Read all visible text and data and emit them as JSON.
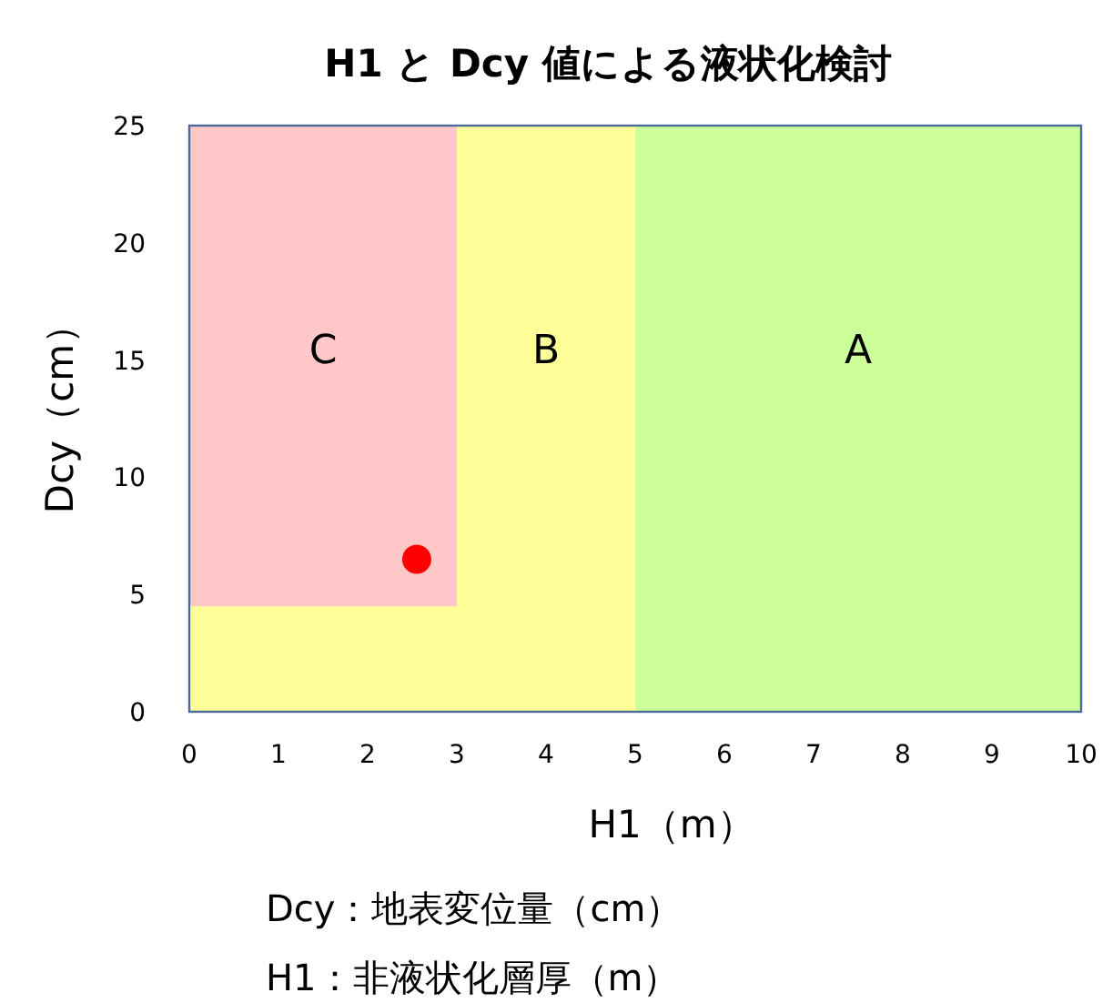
{
  "chart_data": {
    "type": "scatter",
    "title": "H1 と Dcy 値による液状化検討",
    "xlabel": "H1（m）",
    "ylabel": "Dcy（cm）",
    "xlim": [
      0,
      10
    ],
    "xticks": [
      0,
      1,
      2,
      3,
      4,
      5,
      6,
      7,
      8,
      9,
      10
    ],
    "ylim": [
      0,
      25
    ],
    "yticks": [
      0,
      5,
      10,
      15,
      20,
      25
    ],
    "marker": "circle",
    "grid": false,
    "series": [
      {
        "x": [
          2.55
        ],
        "values": [
          6.5
        ],
        "color": "#ff0000"
      }
    ],
    "bands": [
      {
        "axis": "x",
        "from": 0,
        "to": 3,
        "label": "C",
        "color": "#ffc7c7"
      },
      {
        "axis": "y",
        "from": 0,
        "to": 4.5,
        "color": "#ffff99"
      },
      {
        "axis": "x",
        "from": 3,
        "to": 5,
        "label": "B",
        "color": "#ffff99"
      },
      {
        "axis": "x",
        "from": 5,
        "to": 10,
        "label": "A",
        "color": "#ccff99"
      }
    ],
    "annotations": [
      "Dcy：地表変位量（cm）",
      "H1：非液状化層厚（m）"
    ]
  }
}
